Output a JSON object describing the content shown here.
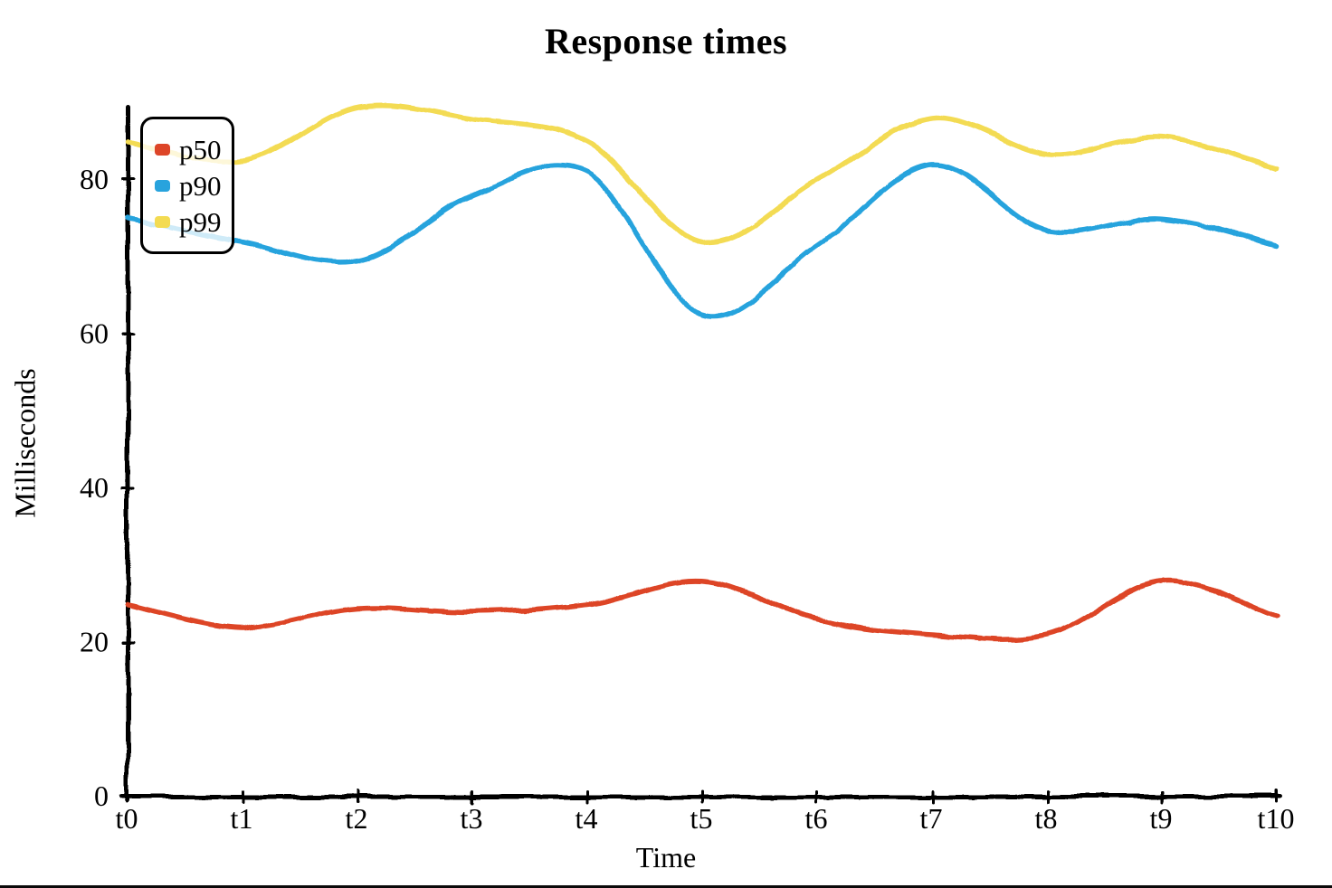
{
  "chart_data": {
    "type": "line",
    "title": "Response times",
    "xlabel": "Time",
    "ylabel": "Milliseconds",
    "x_categories": [
      "t0",
      "t1",
      "t2",
      "t3",
      "t4",
      "t5",
      "t6",
      "t7",
      "t8",
      "t9",
      "t10"
    ],
    "y_ticks": [
      0,
      20,
      40,
      60,
      80
    ],
    "ylim": [
      0,
      90
    ],
    "grid": false,
    "legend_position": "upper-left",
    "style": "hand-drawn-xkcd",
    "axis_color": "#000000",
    "background_color": "#ffffff",
    "series": [
      {
        "name": "p50",
        "color": "#dd4528",
        "values": [
          25,
          22,
          24.5,
          24,
          25,
          28,
          23,
          21,
          21,
          28,
          23.5
        ]
      },
      {
        "name": "p90",
        "color": "#28a3dd",
        "values": [
          75,
          72,
          69.5,
          78,
          81,
          62.5,
          71.5,
          82,
          73.5,
          75,
          71.5
        ]
      },
      {
        "name": "p99",
        "color": "#f3db52",
        "values": [
          85,
          82.5,
          89.5,
          88,
          85,
          72,
          80,
          88,
          83.5,
          85.5,
          81.5
        ]
      }
    ]
  }
}
